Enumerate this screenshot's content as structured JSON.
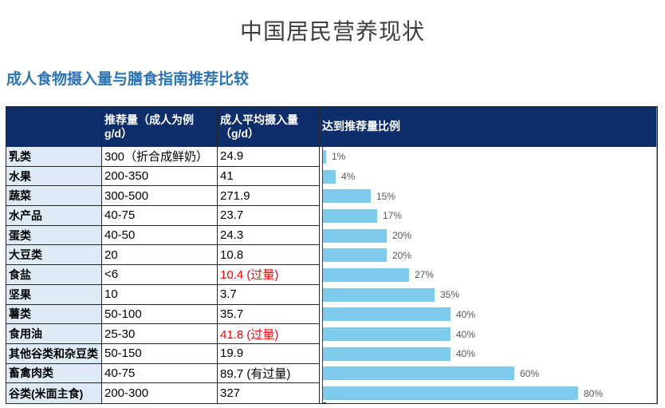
{
  "page": {
    "title": "中国居民营养现状",
    "subtitle": "成人食物摄入量与膳食指南推荐比较"
  },
  "table": {
    "headers": {
      "category": "",
      "recommended": "推荐量（成人为例 g/d）",
      "intake": "成人平均摄入量（g/d）",
      "ratio": "达到推荐量比例"
    },
    "rows": [
      {
        "category": "乳类",
        "recommended": "300（折合成鲜奶）",
        "intake": "24.9",
        "intake_alert": false,
        "percent": 1,
        "percent_label": "1%"
      },
      {
        "category": "水果",
        "recommended": "200-350",
        "intake": "41",
        "intake_alert": false,
        "percent": 4,
        "percent_label": "4%"
      },
      {
        "category": "蔬菜",
        "recommended": "300-500",
        "intake": "271.9",
        "intake_alert": false,
        "percent": 15,
        "percent_label": "15%"
      },
      {
        "category": "水产品",
        "recommended": "40-75",
        "intake": "23.7",
        "intake_alert": false,
        "percent": 17,
        "percent_label": "17%"
      },
      {
        "category": "蛋类",
        "recommended": "40-50",
        "intake": "24.3",
        "intake_alert": false,
        "percent": 20,
        "percent_label": "20%"
      },
      {
        "category": "大豆类",
        "recommended": "20",
        "intake": "10.8",
        "intake_alert": false,
        "percent": 20,
        "percent_label": "20%"
      },
      {
        "category": "食盐",
        "recommended": "<6",
        "intake": "10.4 (过量)",
        "intake_alert": true,
        "percent": 27,
        "percent_label": "27%"
      },
      {
        "category": "坚果",
        "recommended": "10",
        "intake": "3.7",
        "intake_alert": false,
        "percent": 35,
        "percent_label": "35%"
      },
      {
        "category": "薯类",
        "recommended": "50-100",
        "intake": "35.7",
        "intake_alert": false,
        "percent": 40,
        "percent_label": "40%"
      },
      {
        "category": "食用油",
        "recommended": "25-30",
        "intake": "41.8 (过量)",
        "intake_alert": true,
        "percent": 40,
        "percent_label": "40%"
      },
      {
        "category": "其他谷类和杂豆类",
        "recommended": "50-150",
        "intake": "19.9",
        "intake_alert": false,
        "percent": 40,
        "percent_label": "40%"
      },
      {
        "category": "畜禽肉类",
        "recommended": "40-75",
        "intake": "89.7 (有过量)",
        "intake_alert": false,
        "percent": 60,
        "percent_label": "60%"
      },
      {
        "category": "谷类(米面主食)",
        "recommended": "200-300",
        "intake": "327",
        "intake_alert": false,
        "percent": 80,
        "percent_label": "80%"
      }
    ]
  },
  "chart_data": {
    "type": "bar",
    "orientation": "horizontal",
    "title": "达到推荐量比例",
    "categories": [
      "乳类",
      "水果",
      "蔬菜",
      "水产品",
      "蛋类",
      "大豆类",
      "食盐",
      "坚果",
      "薯类",
      "食用油",
      "其他谷类和杂豆类",
      "畜禽肉类",
      "谷类(米面主食)"
    ],
    "values": [
      1,
      4,
      15,
      17,
      20,
      20,
      27,
      35,
      40,
      40,
      40,
      60,
      80
    ],
    "unit": "%",
    "xlim": [
      0,
      100
    ],
    "data_labels": [
      "1%",
      "4%",
      "15%",
      "17%",
      "20%",
      "20%",
      "27%",
      "35%",
      "40%",
      "40%",
      "40%",
      "60%",
      "80%"
    ],
    "grid": false,
    "legend": false
  },
  "colors": {
    "header_bg": "#0d2e6b",
    "header_text": "#ffffff",
    "category_bg": "#deebf7",
    "bar_fill": "#7fcbec",
    "alert_text": "#ff0000",
    "subtitle_text": "#2e74b5",
    "title_text": "#3f3f3f",
    "percent_label": "#595959"
  }
}
